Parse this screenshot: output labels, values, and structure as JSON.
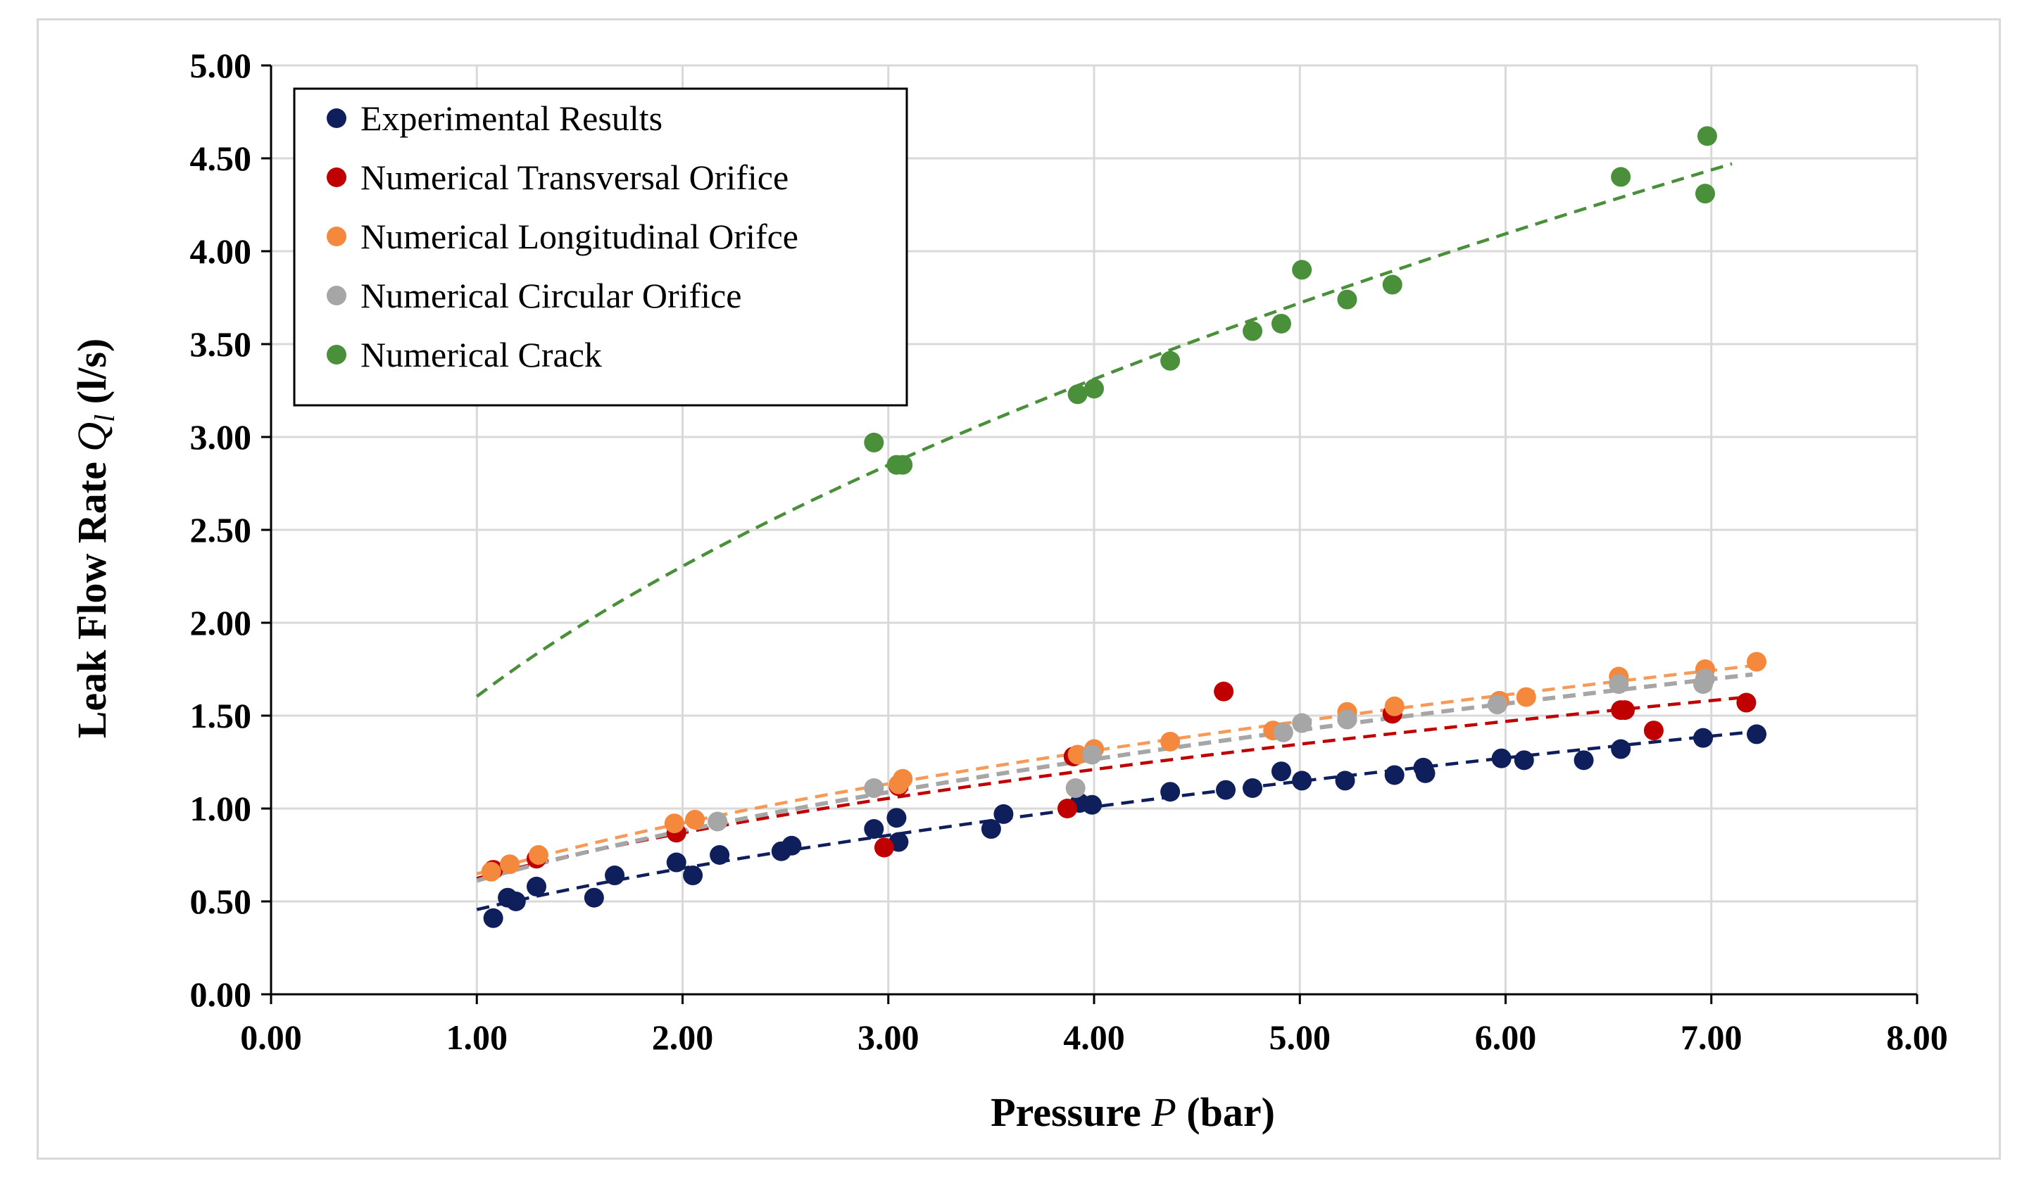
{
  "chart_data": {
    "type": "scatter",
    "title": "",
    "xlabel": {
      "prefix": "Pressure ",
      "var": "P",
      "suffix": " (bar)"
    },
    "ylabel": {
      "prefix": "Leak Flow Rate ",
      "var": "Q",
      "sub": "l",
      "suffix": " (l/s)"
    },
    "xlim": [
      0,
      8
    ],
    "ylim": [
      0,
      5
    ],
    "x_ticks": [
      "0.00",
      "1.00",
      "2.00",
      "3.00",
      "4.00",
      "5.00",
      "6.00",
      "7.00",
      "8.00"
    ],
    "y_ticks": [
      "0.00",
      "0.50",
      "1.00",
      "1.50",
      "2.00",
      "2.50",
      "3.00",
      "3.50",
      "4.00",
      "4.50",
      "5.00"
    ],
    "grid": true,
    "legend_position": "top-left",
    "series": [
      {
        "name": "Experimental Results",
        "color": "#0e1f5b",
        "points": [
          [
            1.08,
            0.41
          ],
          [
            1.15,
            0.52
          ],
          [
            1.19,
            0.5
          ],
          [
            1.29,
            0.58
          ],
          [
            1.57,
            0.52
          ],
          [
            1.67,
            0.64
          ],
          [
            1.97,
            0.71
          ],
          [
            2.05,
            0.64
          ],
          [
            2.18,
            0.75
          ],
          [
            2.48,
            0.77
          ],
          [
            2.53,
            0.8
          ],
          [
            2.93,
            0.89
          ],
          [
            3.04,
            0.95
          ],
          [
            3.05,
            0.82
          ],
          [
            3.5,
            0.89
          ],
          [
            3.56,
            0.97
          ],
          [
            3.93,
            1.03
          ],
          [
            3.99,
            1.02
          ],
          [
            4.37,
            1.09
          ],
          [
            4.64,
            1.1
          ],
          [
            4.77,
            1.11
          ],
          [
            4.91,
            1.2
          ],
          [
            5.01,
            1.15
          ],
          [
            5.22,
            1.15
          ],
          [
            5.46,
            1.18
          ],
          [
            5.6,
            1.22
          ],
          [
            5.61,
            1.19
          ],
          [
            5.98,
            1.27
          ],
          [
            6.09,
            1.26
          ],
          [
            6.38,
            1.26
          ],
          [
            6.56,
            1.32
          ],
          [
            6.96,
            1.38
          ],
          [
            7.22,
            1.4
          ]
        ],
        "trend": {
          "x": [
            1.0,
            7.2
          ]
        }
      },
      {
        "name": "Numerical Transversal Orifice",
        "color": "#c00000",
        "points": [
          [
            1.08,
            0.67
          ],
          [
            1.29,
            0.73
          ],
          [
            1.97,
            0.87
          ],
          [
            2.98,
            0.79
          ],
          [
            3.05,
            1.12
          ],
          [
            3.87,
            1.0
          ],
          [
            3.9,
            1.28
          ],
          [
            4.63,
            1.63
          ],
          [
            5.23,
            1.48
          ],
          [
            5.45,
            1.51
          ],
          [
            6.56,
            1.53
          ],
          [
            6.58,
            1.53
          ],
          [
            6.72,
            1.42
          ],
          [
            7.17,
            1.57
          ]
        ],
        "trend": {
          "x": [
            1.0,
            7.2
          ]
        }
      },
      {
        "name": "Numerical Longitudinal Orifce",
        "color": "#f4883c",
        "points": [
          [
            1.07,
            0.66
          ],
          [
            1.16,
            0.7
          ],
          [
            1.3,
            0.75
          ],
          [
            1.96,
            0.92
          ],
          [
            2.06,
            0.94
          ],
          [
            3.05,
            1.13
          ],
          [
            3.07,
            1.16
          ],
          [
            3.92,
            1.29
          ],
          [
            4.0,
            1.32
          ],
          [
            4.37,
            1.36
          ],
          [
            4.87,
            1.42
          ],
          [
            5.23,
            1.52
          ],
          [
            5.46,
            1.55
          ],
          [
            5.97,
            1.58
          ],
          [
            6.1,
            1.6
          ],
          [
            6.55,
            1.71
          ],
          [
            6.97,
            1.75
          ],
          [
            7.22,
            1.79
          ]
        ],
        "trend": {
          "x": [
            1.0,
            7.2
          ]
        }
      },
      {
        "name": "Numerical Circular Orifice",
        "color": "#a6a6a6",
        "points": [
          [
            2.17,
            0.93
          ],
          [
            2.93,
            1.11
          ],
          [
            3.91,
            1.11
          ],
          [
            3.99,
            1.29
          ],
          [
            4.92,
            1.41
          ],
          [
            5.01,
            1.46
          ],
          [
            5.23,
            1.48
          ],
          [
            5.96,
            1.56
          ],
          [
            6.55,
            1.67
          ],
          [
            6.96,
            1.67
          ],
          [
            6.97,
            1.7
          ]
        ],
        "trend": {
          "x": [
            1.0,
            7.2
          ]
        }
      },
      {
        "name": "Numerical Crack",
        "color": "#4a8f3a",
        "points": [
          [
            2.93,
            2.97
          ],
          [
            3.04,
            2.85
          ],
          [
            3.07,
            2.85
          ],
          [
            3.92,
            3.23
          ],
          [
            4.0,
            3.26
          ],
          [
            4.37,
            3.41
          ],
          [
            4.77,
            3.57
          ],
          [
            4.91,
            3.61
          ],
          [
            5.01,
            3.9
          ],
          [
            5.23,
            3.74
          ],
          [
            5.45,
            3.82
          ],
          [
            6.56,
            4.4
          ],
          [
            6.97,
            4.31
          ],
          [
            6.98,
            4.62
          ]
        ],
        "trend": {
          "x": [
            1.0,
            7.1
          ]
        }
      }
    ]
  }
}
